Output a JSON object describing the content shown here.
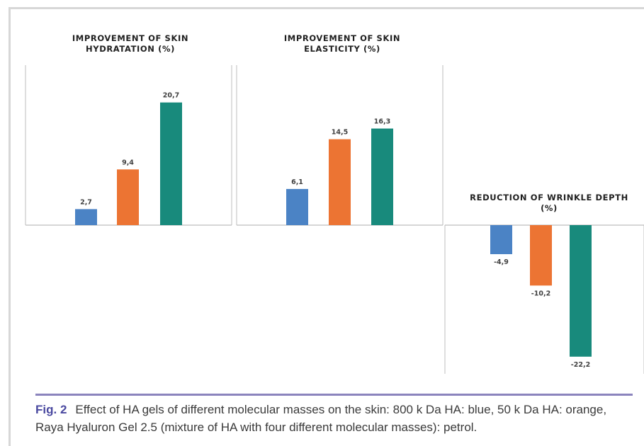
{
  "chart_data": [
    {
      "type": "bar",
      "title": "IMPROVEMENT OF SKIN HYDRATATION (%)",
      "title_lines": [
        "IMPROVEMENT OF SKIN",
        "HYDRATATION (%)"
      ],
      "series": [
        {
          "values": [
            2.7
          ],
          "labels": [
            "2,7"
          ],
          "color": "#4b83c5"
        },
        {
          "values": [
            9.4
          ],
          "labels": [
            "9,4"
          ],
          "color": "#ec7433"
        },
        {
          "values": [
            20.7
          ],
          "labels": [
            "20,7"
          ],
          "color": "#188a7c"
        }
      ]
    },
    {
      "type": "bar",
      "title": "IMPROVEMENT OF SKIN ELASTICITY (%)",
      "title_lines": [
        "IMPROVEMENT OF SKIN",
        "ELASTICITY (%)"
      ],
      "series": [
        {
          "values": [
            6.1
          ],
          "labels": [
            "6,1"
          ],
          "color": "#4b83c5"
        },
        {
          "values": [
            14.5
          ],
          "labels": [
            "14,5"
          ],
          "color": "#ec7433"
        },
        {
          "values": [
            16.3
          ],
          "labels": [
            "16,3"
          ],
          "color": "#188a7c"
        }
      ]
    },
    {
      "type": "bar",
      "title": "REDUCTION OF WRINKLE DEPTH (%)",
      "title_lines": [
        "REDUCTION OF WRINKLE DEPTH",
        "(%)"
      ],
      "series": [
        {
          "values": [
            -4.9
          ],
          "labels": [
            "-4,9"
          ],
          "color": "#4b83c5"
        },
        {
          "values": [
            -10.2
          ],
          "labels": [
            "-10,2"
          ],
          "color": "#ec7433"
        },
        {
          "values": [
            -22.2
          ],
          "labels": [
            "-22,2"
          ],
          "color": "#188a7c"
        }
      ]
    }
  ],
  "caption": {
    "label": "Fig. 2",
    "text": "Effect of HA gels of different molecular masses on the skin: 800 k Da HA: blue, 50 k Da HA: orange, Raya Hyaluron Gel 2.5 (mixture of HA with four different molecular masses): petrol."
  }
}
